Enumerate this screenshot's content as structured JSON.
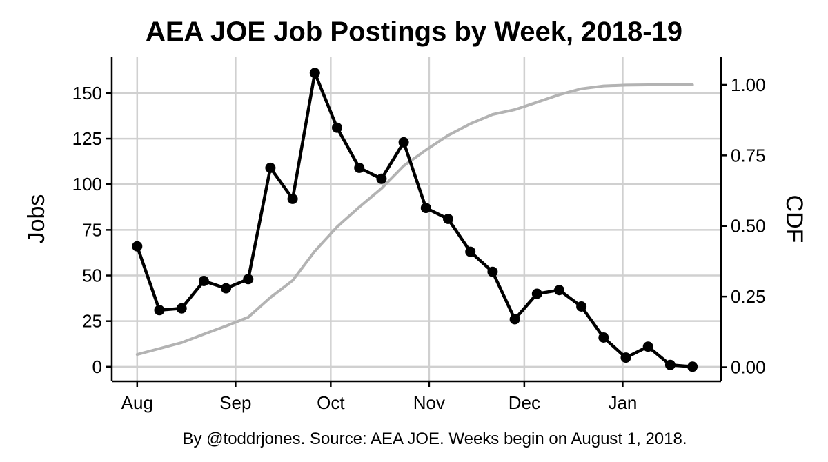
{
  "chart_data": {
    "type": "line",
    "title": "AEA JOE Job Postings by Week, 2018-19",
    "ylabel": "Jobs",
    "y2label": "CDF",
    "caption": "By @toddrjones. Source: AEA JOE. Weeks begin on August 1, 2018.",
    "x": [
      "2018-08-01",
      "2018-08-08",
      "2018-08-15",
      "2018-08-22",
      "2018-08-29",
      "2018-09-05",
      "2018-09-12",
      "2018-09-19",
      "2018-09-26",
      "2018-10-03",
      "2018-10-10",
      "2018-10-17",
      "2018-10-24",
      "2018-10-31",
      "2018-11-07",
      "2018-11-14",
      "2018-11-21",
      "2018-11-28",
      "2018-12-05",
      "2018-12-12",
      "2018-12-19",
      "2018-12-26",
      "2019-01-02",
      "2019-01-09",
      "2019-01-16",
      "2019-01-23"
    ],
    "series": [
      {
        "name": "Jobs",
        "axis": "left",
        "color": "#000000",
        "markers": true,
        "values": [
          66,
          31,
          32,
          47,
          43,
          48,
          109,
          92,
          161,
          131,
          109,
          103,
          123,
          87,
          81,
          63,
          52,
          26,
          40,
          42,
          33,
          16,
          5,
          11,
          1,
          0
        ]
      },
      {
        "name": "CDF",
        "axis": "right",
        "color": "#b3b3b3",
        "markers": false,
        "values": [
          0.045,
          0.066,
          0.087,
          0.117,
          0.146,
          0.177,
          0.247,
          0.307,
          0.411,
          0.497,
          0.567,
          0.633,
          0.713,
          0.769,
          0.821,
          0.862,
          0.895,
          0.912,
          0.938,
          0.965,
          0.986,
          0.996,
          0.999,
          1.0,
          1.0,
          1.0
        ]
      }
    ],
    "xticks": [
      {
        "date": "2018-08-01",
        "label": "Aug"
      },
      {
        "date": "2018-09-01",
        "label": "Sep"
      },
      {
        "date": "2018-10-01",
        "label": "Oct"
      },
      {
        "date": "2018-11-01",
        "label": "Nov"
      },
      {
        "date": "2018-12-01",
        "label": "Dec"
      },
      {
        "date": "2019-01-01",
        "label": "Jan"
      }
    ],
    "yticks": [
      0,
      25,
      50,
      75,
      100,
      125,
      150
    ],
    "y2ticks": [
      0,
      0.25,
      0.5,
      0.75,
      1.0
    ],
    "y2ticklabels": [
      "0.00",
      "0.25",
      "0.50",
      "0.75",
      "1.00"
    ],
    "xlim": [
      "2018-07-24",
      "2019-02-01"
    ],
    "ylim": [
      -8,
      170
    ],
    "y2lim": [
      -0.05,
      1.1
    ],
    "grid": true
  }
}
